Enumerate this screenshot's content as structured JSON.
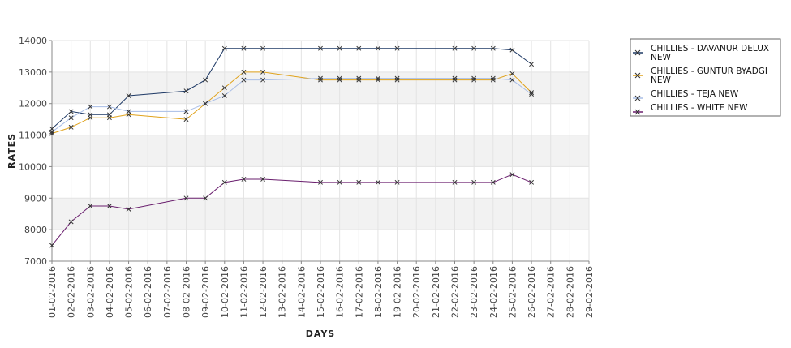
{
  "chart_data": {
    "type": "line",
    "xlabel": "DAYS",
    "ylabel": "RATES",
    "ylim": [
      7000,
      14000
    ],
    "yticks": [
      "7000",
      "8000",
      "9000",
      "10000",
      "11000",
      "12000",
      "13000",
      "14000"
    ],
    "x": [
      "01-02-2016",
      "02-02-2016",
      "03-02-2016",
      "04-02-2016",
      "05-02-2016",
      "06-02-2016",
      "07-02-2016",
      "08-02-2016",
      "09-02-2016",
      "10-02-2016",
      "11-02-2016",
      "12-02-2016",
      "13-02-2016",
      "14-02-2016",
      "15-02-2016",
      "16-02-2016",
      "17-02-2016",
      "18-02-2016",
      "19-02-2016",
      "20-02-2016",
      "21-02-2016",
      "22-02-2016",
      "23-02-2016",
      "24-02-2016",
      "25-02-2016",
      "26-02-2016",
      "27-02-2016",
      "28-02-2016",
      "29-02-2016"
    ],
    "grid": true,
    "legend_position": "right",
    "series": [
      {
        "name": "CHILLIES - DAVANUR DELUX NEW",
        "color": "#1f3a66",
        "values": [
          11200,
          11750,
          11650,
          11650,
          12250,
          null,
          null,
          12400,
          12750,
          13750,
          13750,
          13750,
          null,
          null,
          13750,
          13750,
          13750,
          13750,
          13750,
          null,
          null,
          13750,
          13750,
          13750,
          13700,
          13250,
          null,
          null,
          null
        ]
      },
      {
        "name": "CHILLIES - GUNTUR BYADGI NEW",
        "color": "#e0a21a",
        "values": [
          11050,
          11250,
          11550,
          11550,
          11650,
          null,
          null,
          11500,
          12000,
          12500,
          13000,
          13000,
          null,
          null,
          12750,
          12750,
          12750,
          12750,
          12750,
          null,
          null,
          12750,
          12750,
          12750,
          12950,
          12350,
          null,
          null,
          null
        ]
      },
      {
        "name": "CHILLIES - TEJA NEW",
        "color": "#a8bde6",
        "values": [
          11100,
          11550,
          11900,
          11900,
          11750,
          null,
          null,
          11750,
          12000,
          12250,
          12750,
          12750,
          null,
          null,
          12800,
          12800,
          12800,
          12800,
          12800,
          null,
          null,
          12800,
          12800,
          12800,
          12750,
          12300,
          null,
          null,
          null
        ]
      },
      {
        "name": "CHILLIES - WHITE NEW",
        "color": "#6a1f6e",
        "values": [
          7500,
          8250,
          8750,
          8750,
          8650,
          null,
          null,
          9000,
          9000,
          9500,
          9600,
          9600,
          null,
          null,
          9500,
          9500,
          9500,
          9500,
          9500,
          null,
          null,
          9500,
          9500,
          9500,
          9750,
          9500,
          null,
          null,
          null
        ]
      }
    ]
  }
}
